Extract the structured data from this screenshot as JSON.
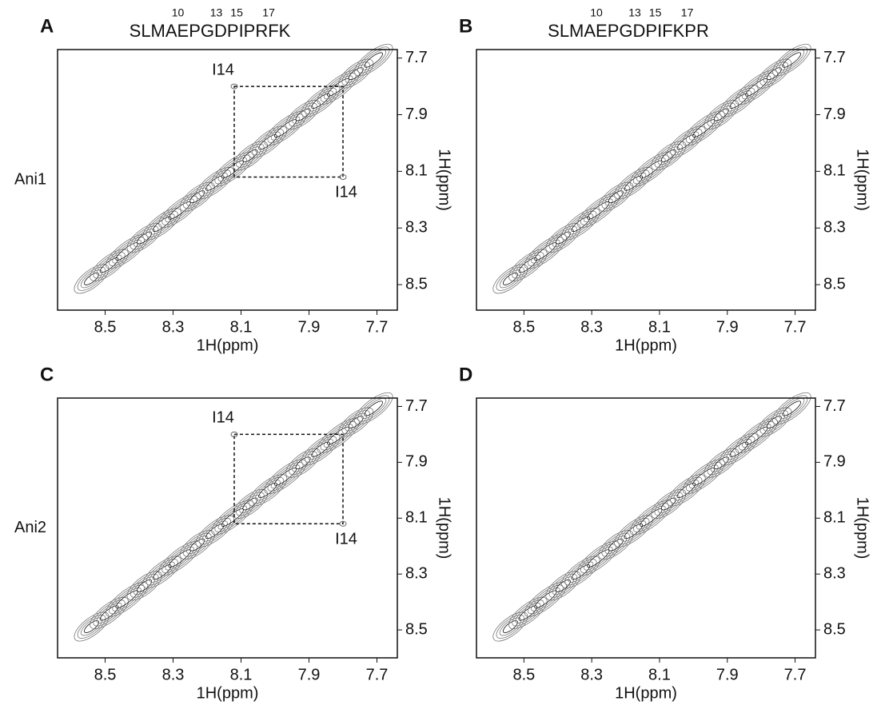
{
  "panels": [
    {
      "letter": "A",
      "row_label": "Ani1",
      "sequence": "SLMAEPGDPIPRFK",
      "residue_numbers": [
        10,
        13,
        15,
        17
      ],
      "xlim": [
        8.64,
        7.64
      ],
      "ylim": [
        7.67,
        8.59
      ],
      "xticks": [
        8.5,
        8.3,
        8.1,
        7.9,
        7.7
      ],
      "yticks": [
        7.7,
        7.9,
        8.1,
        8.3,
        8.5
      ],
      "xlabel": "1H(ppm)",
      "ylabel": "1H(ppm)",
      "annotations": [
        "I14",
        "I14"
      ],
      "box": {
        "x": [
          8.12,
          7.8
        ],
        "y": [
          7.8,
          8.12
        ]
      }
    },
    {
      "letter": "B",
      "sequence": "SLMAEPGDPIFKPR",
      "residue_numbers": [
        10,
        13,
        15,
        17
      ],
      "xlim": [
        8.64,
        7.64
      ],
      "ylim": [
        7.67,
        8.59
      ],
      "xticks": [
        8.5,
        8.3,
        8.1,
        7.9,
        7.7
      ],
      "yticks": [
        7.7,
        7.9,
        8.1,
        8.3,
        8.5
      ],
      "xlabel": "1H(ppm)",
      "ylabel": "1H(ppm)"
    },
    {
      "letter": "C",
      "row_label": "Ani2",
      "xlim": [
        8.64,
        7.64
      ],
      "ylim": [
        7.67,
        8.6
      ],
      "xticks": [
        8.5,
        8.3,
        8.1,
        7.9,
        7.7
      ],
      "yticks": [
        7.7,
        7.9,
        8.1,
        8.3,
        8.5
      ],
      "xlabel": "1H(ppm)",
      "ylabel": "1H(ppm)",
      "annotations": [
        "I14",
        "I14"
      ],
      "box": {
        "x": [
          8.12,
          7.8
        ],
        "y": [
          7.8,
          8.12
        ]
      }
    },
    {
      "letter": "D",
      "xlim": [
        8.64,
        7.64
      ],
      "ylim": [
        7.67,
        8.6
      ],
      "xticks": [
        8.5,
        8.3,
        8.1,
        7.9,
        7.7
      ],
      "yticks": [
        7.7,
        7.9,
        8.1,
        8.3,
        8.5
      ],
      "xlabel": "1H(ppm)",
      "ylabel": "1H(ppm)"
    }
  ]
}
